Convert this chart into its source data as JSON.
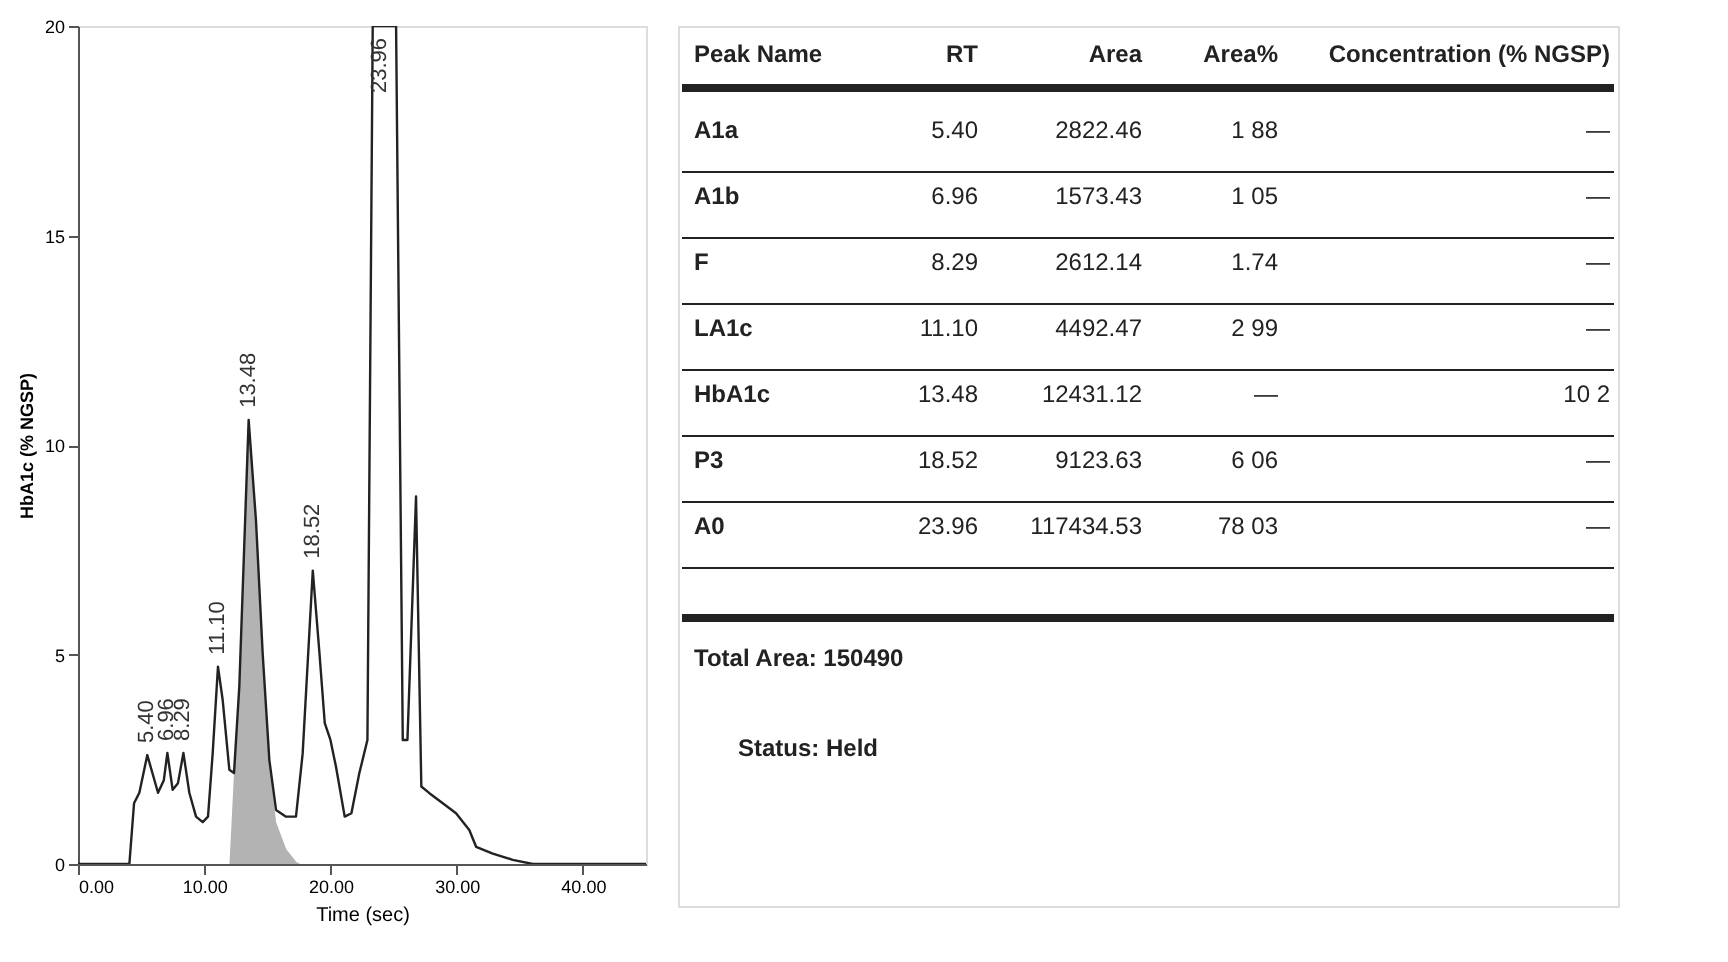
{
  "chart_data": [
    {
      "type": "line",
      "xlabel": "Time (sec)",
      "ylabel": "HbA1c (% NGSP)",
      "xlim": [
        0,
        45
      ],
      "xticks": [
        {
          "value": 0,
          "label": "0.00"
        },
        {
          "value": 10,
          "label": "10.00"
        },
        {
          "value": 20,
          "label": "20.00"
        },
        {
          "value": 30,
          "label": "30.00"
        },
        {
          "value": 40,
          "label": "40.00"
        }
      ],
      "ylim": [
        0,
        20
      ],
      "yticks": [
        0,
        5,
        10,
        15,
        20
      ],
      "grid": false,
      "series": [
        {
          "type": "area",
          "color": "#b3b3b3",
          "x": [
            12.0,
            12.36,
            12.78,
            13.52,
            14.1,
            14.63,
            15.16,
            15.69,
            16.5,
            17.3,
            17.6
          ],
          "values": [
            0,
            2.17,
            4.24,
            10.6,
            8.2,
            5.03,
            2.48,
            1.0,
            0.35,
            0.05,
            0
          ]
        },
        {
          "type": "line",
          "color": "#222222",
          "x": [
            0,
            4.07,
            4.44,
            4.86,
            5.49,
            6.34,
            6.8,
            7.08,
            7.5,
            7.92,
            8.35,
            8.82,
            9.35,
            9.88,
            10.3,
            10.67,
            11.09,
            11.46,
            11.99,
            12.36,
            12.78,
            13.52,
            14.1,
            14.63,
            15.16,
            15.69,
            16.48,
            17.27,
            17.8,
            18.6,
            19.13,
            19.55,
            20.0,
            20.44,
            21.13,
            21.66,
            22.29,
            22.93,
            23.35,
            25.2,
            25.73,
            26.1,
            26.78,
            27.2,
            27.84,
            28.9,
            29.95,
            31.0,
            31.54,
            32.86,
            34.44,
            36.03,
            45
          ],
          "values": [
            0,
            0,
            1.45,
            1.7,
            2.6,
            1.7,
            2.0,
            2.65,
            1.77,
            1.93,
            2.65,
            1.7,
            1.13,
            1.0,
            1.13,
            2.64,
            4.71,
            3.92,
            2.25,
            2.17,
            4.24,
            10.6,
            8.2,
            5.03,
            2.48,
            1.29,
            1.13,
            1.13,
            2.64,
            7.0,
            5.03,
            3.36,
            2.96,
            2.32,
            1.13,
            1.21,
            2.17,
            2.96,
            20,
            20,
            2.96,
            2.96,
            8.77,
            1.85,
            1.69,
            1.45,
            1.21,
            0.81,
            0.41,
            0.25,
            0.1,
            0,
            0
          ]
        }
      ],
      "annotations": [
        {
          "text": "5.40",
          "x": 5.49,
          "y": 2.6
        },
        {
          "text": "6.96",
          "x": 7.08,
          "y": 2.65
        },
        {
          "text": "8.29",
          "x": 8.35,
          "y": 2.65
        },
        {
          "text": "11.10",
          "x": 11.09,
          "y": 4.71
        },
        {
          "text": "13.48",
          "x": 13.52,
          "y": 10.6
        },
        {
          "text": "18.52",
          "x": 18.6,
          "y": 7.0
        },
        {
          "text": "23.96",
          "x": 23.96,
          "y": 20
        }
      ]
    },
    {
      "type": "other",
      "annotations": [
        "Peak Name",
        "RT",
        "Area",
        "Area%",
        "Concentration (% NGSP)",
        "A1a",
        "5.40",
        "2822.46",
        "1 88",
        "—",
        "A1b",
        "6.96",
        "1573.43",
        "1 05",
        "—",
        "F",
        "8.29",
        "2612.14",
        "1.74",
        "—",
        "LA1c",
        "11.10",
        "4492.47",
        "2 99",
        "—",
        "HbA1c",
        "13.48",
        "12431.12",
        "—",
        "10 2",
        "P3",
        "18.52",
        "9123.63",
        "6 06",
        "—",
        "A0",
        "23.96",
        "117434.53",
        "78 03",
        "—",
        "Total Area:   150490",
        "Status:  Held"
      ]
    }
  ]
}
